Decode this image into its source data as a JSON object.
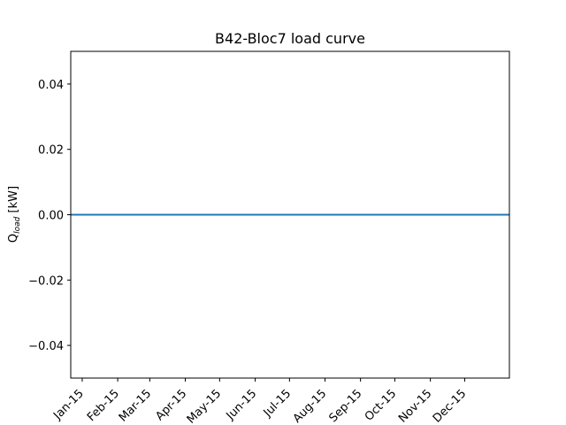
{
  "chart_data": {
    "type": "line",
    "title": "B42-Bloc7 load curve",
    "ylabel_main": "Q",
    "ylabel_sub": "load",
    "ylabel_unit": " [kW]",
    "x_start": "2014-12-22",
    "x_end": "2016-01-09",
    "xticks": [
      {
        "date": "2015-01-01",
        "label": "Jan-15"
      },
      {
        "date": "2015-02-01",
        "label": "Feb-15"
      },
      {
        "date": "2015-03-01",
        "label": "Mar-15"
      },
      {
        "date": "2015-04-01",
        "label": "Apr-15"
      },
      {
        "date": "2015-05-01",
        "label": "May-15"
      },
      {
        "date": "2015-06-01",
        "label": "Jun-15"
      },
      {
        "date": "2015-07-01",
        "label": "Jul-15"
      },
      {
        "date": "2015-08-01",
        "label": "Aug-15"
      },
      {
        "date": "2015-09-01",
        "label": "Sep-15"
      },
      {
        "date": "2015-10-01",
        "label": "Oct-15"
      },
      {
        "date": "2015-11-01",
        "label": "Nov-15"
      },
      {
        "date": "2015-12-01",
        "label": "Dec-15"
      }
    ],
    "ylim": [
      -0.05,
      0.05
    ],
    "yticks": [
      {
        "value": 0.04,
        "label": "0.04"
      },
      {
        "value": 0.02,
        "label": "0.02"
      },
      {
        "value": 0.0,
        "label": "0.00"
      },
      {
        "value": -0.02,
        "label": "−0.02"
      },
      {
        "value": -0.04,
        "label": "−0.04"
      }
    ],
    "series": [
      {
        "color": "#1f77b4",
        "points": [
          {
            "x": "2014-12-22",
            "y": 0
          },
          {
            "x": "2016-01-09",
            "y": 0
          }
        ]
      }
    ],
    "grid": false,
    "legend": false
  }
}
